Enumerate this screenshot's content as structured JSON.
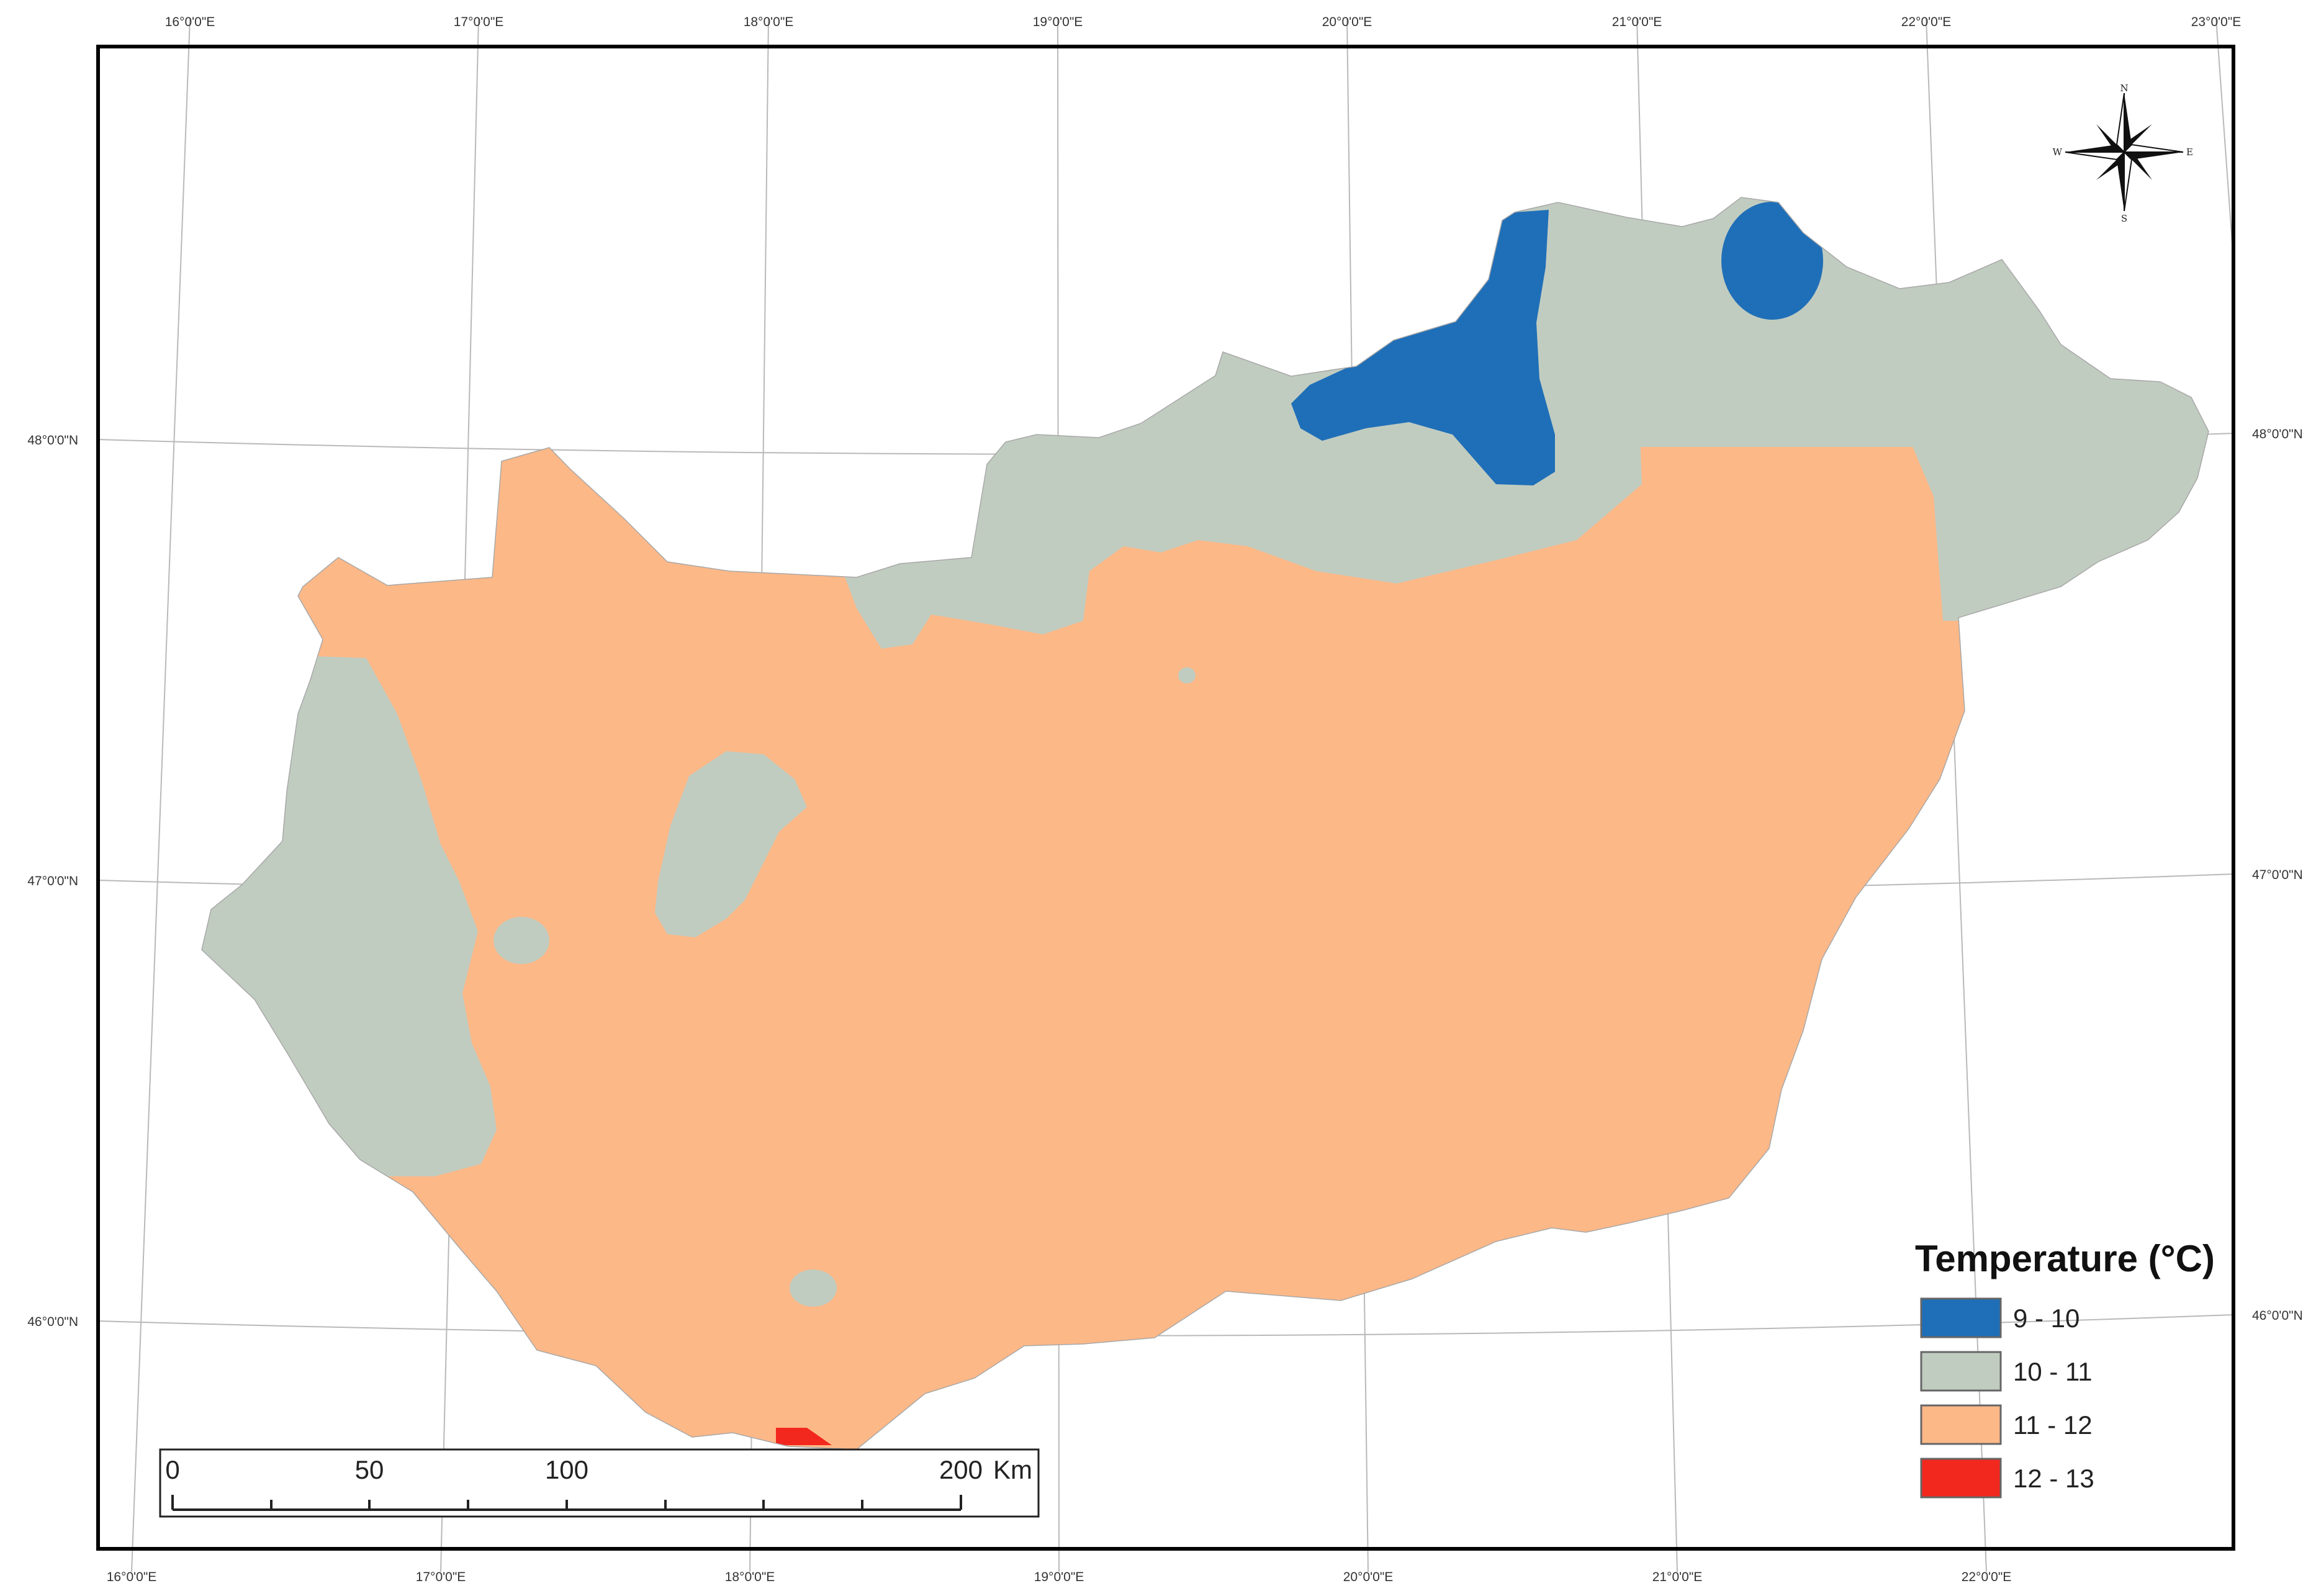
{
  "graticule": {
    "top_labels": [
      "16°0'0\"E",
      "17°0'0\"E",
      "18°0'0\"E",
      "19°0'0\"E",
      "20°0'0\"E",
      "21°0'0\"E",
      "22°0'0\"E",
      "23°0'0\"E"
    ],
    "bottom_labels": [
      "16°0'0\"E",
      "17°0'0\"E",
      "18°0'0\"E",
      "19°0'0\"E",
      "20°0'0\"E",
      "21°0'0\"E",
      "22°0'0\"E"
    ],
    "left_labels": [
      "48°0'0\"N",
      "47°0'0\"N",
      "46°0'0\"N"
    ],
    "right_labels": [
      "48°0'0\"N",
      "47°0'0\"N",
      "46°0'0\"N"
    ]
  },
  "compass": {
    "n": "N",
    "s": "S",
    "e": "E",
    "w": "W"
  },
  "legend": {
    "title": "Temperature (°C)",
    "items": [
      {
        "label": "9 - 10",
        "color": "#1f6fb8"
      },
      {
        "label": "10 - 11",
        "color": "#c1ccc0"
      },
      {
        "label": "11 - 12",
        "color": "#fdb887"
      },
      {
        "label": "12 - 13",
        "color": "#f2281f"
      }
    ]
  },
  "scale_bar": {
    "labels": [
      "0",
      "50",
      "100",
      "200"
    ],
    "unit": "Km"
  },
  "colors": {
    "frame": "#000000",
    "graticule": "#b9b9b9"
  }
}
